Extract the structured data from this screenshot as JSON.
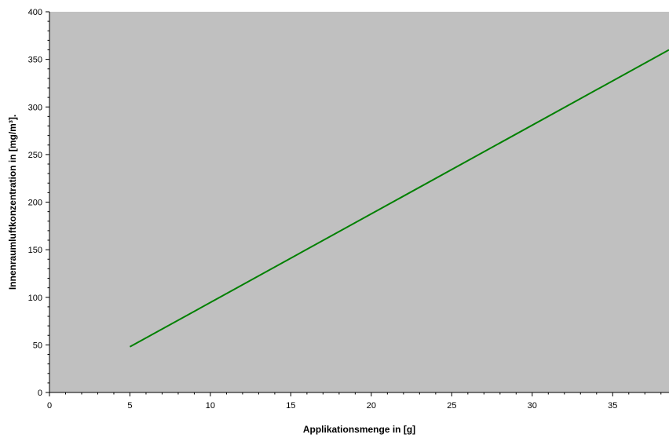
{
  "chart_data": {
    "type": "line",
    "title": "",
    "xlabel": "Applikationsmenge in [g]",
    "ylabel": "Innenraumluftkonzentration in [mg/m³].",
    "xlim": [
      0,
      38.5
    ],
    "ylim": [
      0,
      400
    ],
    "x_ticks": [
      0,
      5,
      10,
      15,
      20,
      25,
      30,
      35
    ],
    "y_ticks": [
      0,
      50,
      100,
      150,
      200,
      250,
      300,
      350,
      400
    ],
    "x_tick_labels": [
      "0",
      "5",
      "10",
      "15",
      "20",
      "25",
      "30",
      "35"
    ],
    "y_tick_labels": [
      "0",
      "50",
      "100",
      "150",
      "200",
      "250",
      "300",
      "350",
      "400"
    ],
    "grid": false,
    "legend": "none",
    "series": [
      {
        "color": "#008000",
        "x": [
          5,
          38.5
        ],
        "y": [
          48,
          360
        ]
      }
    ],
    "colors": {
      "plot_background": "#c0c0c0",
      "axis": "#000000"
    }
  }
}
